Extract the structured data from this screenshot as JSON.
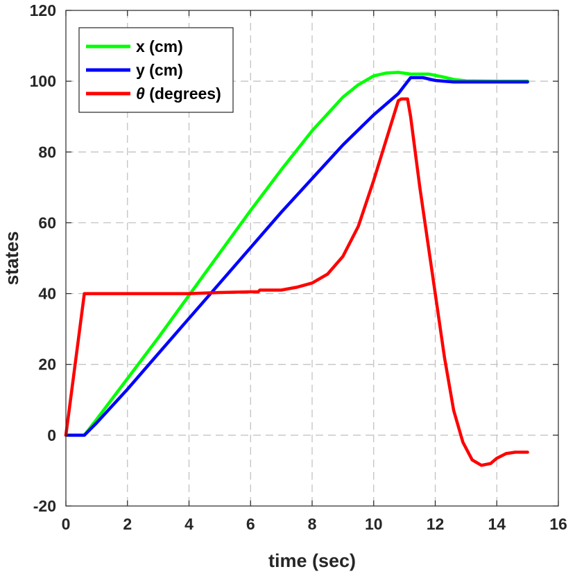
{
  "chart_data": {
    "type": "line",
    "title": "",
    "xlabel": "time (sec)",
    "ylabel": "states",
    "xlim": [
      0,
      16
    ],
    "ylim": [
      -20,
      120
    ],
    "xticks": [
      0,
      2,
      4,
      6,
      8,
      10,
      12,
      14,
      16
    ],
    "yticks": [
      -20,
      0,
      20,
      40,
      60,
      80,
      100,
      120
    ],
    "grid": true,
    "legend_position": "top-left",
    "series": [
      {
        "name": "x (cm)",
        "label_symbol": "x",
        "label_unit": " (cm)",
        "color": "#00ff00",
        "x": [
          0,
          0.6,
          1,
          2,
          3,
          4,
          5,
          6,
          7,
          8,
          9,
          9.5,
          10,
          10.4,
          10.8,
          11.2,
          11.8,
          12.2,
          12.6,
          13,
          14,
          15
        ],
        "y": [
          0,
          0,
          4.5,
          16,
          27.5,
          39.5,
          51.5,
          63.5,
          75,
          86,
          95.5,
          99,
          101.5,
          102.3,
          102.5,
          102,
          102,
          101.3,
          100.5,
          100.1,
          100,
          100
        ]
      },
      {
        "name": "y (cm)",
        "label_symbol": "y",
        "label_unit": " (cm)",
        "color": "#0000ff",
        "x": [
          0,
          0.6,
          1,
          2,
          3,
          4,
          5,
          6,
          7,
          8,
          9,
          10,
          10.8,
          11.2,
          11.6,
          12,
          12.6,
          13,
          14,
          15
        ],
        "y": [
          0,
          0,
          3.5,
          13,
          23,
          33,
          43,
          53,
          63,
          72.5,
          82,
          90.5,
          96.5,
          101,
          101,
          100.2,
          99.8,
          99.8,
          99.8,
          99.8
        ]
      },
      {
        "name": "θ (degrees)",
        "label_symbol": "θ",
        "label_unit": " (degrees)",
        "color": "#ff0000",
        "x": [
          0,
          0.6,
          1,
          2,
          3,
          4,
          5,
          6,
          6.25,
          6.3,
          7,
          7.5,
          8,
          8.5,
          9,
          9.5,
          10,
          10.5,
          10.8,
          10.9,
          11.1,
          11.2,
          11.5,
          12,
          12.3,
          12.6,
          12.9,
          13.2,
          13.5,
          13.8,
          14,
          14.3,
          14.6,
          15
        ],
        "y": [
          0,
          40,
          40,
          40,
          40,
          40,
          40.3,
          40.5,
          40.5,
          41,
          41,
          41.8,
          43,
          45.5,
          50.5,
          59,
          72,
          86,
          94.5,
          95,
          95,
          90,
          70,
          40,
          22,
          7,
          -2,
          -7,
          -8.5,
          -8,
          -6.5,
          -5.2,
          -4.8,
          -4.8
        ]
      }
    ]
  }
}
